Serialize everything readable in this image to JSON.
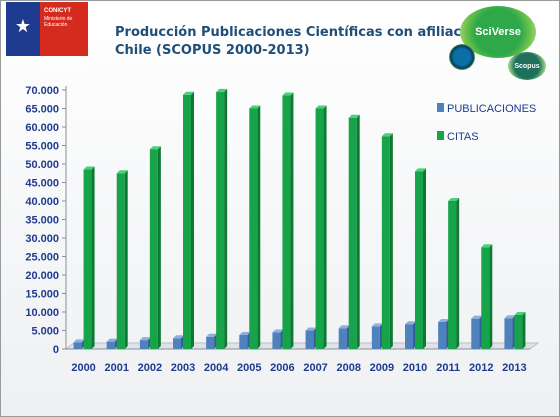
{
  "header": {
    "title_line1": "Producción Publicaciones Científicas con afiliación",
    "title_line2": "Chile (SCOPUS 2000-2013)"
  },
  "logo": {
    "org": "CONICYT",
    "sub1": "Ministerio de",
    "sub2": "Educación",
    "footer": "Gobierno de Chile"
  },
  "badges": {
    "sciverse": "SciVerse",
    "scopus": "Scopus"
  },
  "colors": {
    "publicaciones": "#4f81bd",
    "citas": "#16a34a",
    "axis_text": "#1f3b8f"
  },
  "chart_data": {
    "type": "bar",
    "title": "Producción Publicaciones Científicas con afiliación Chile (SCOPUS 2000-2013)",
    "categories": [
      "2000",
      "2001",
      "2002",
      "2003",
      "2004",
      "2005",
      "2006",
      "2007",
      "2008",
      "2009",
      "2010",
      "2011",
      "2012",
      "2013"
    ],
    "series": [
      {
        "name": "PUBLICACIONES",
        "values": [
          1800,
          2000,
          2400,
          2900,
          3300,
          3800,
          4500,
          5000,
          5600,
          6100,
          6700,
          7300,
          8200,
          8300
        ]
      },
      {
        "name": "CITAS",
        "values": [
          48500,
          47500,
          54000,
          68700,
          69500,
          65000,
          68500,
          65000,
          62500,
          57500,
          48000,
          40000,
          27500,
          9200
        ]
      }
    ],
    "ylim": [
      0,
      70000
    ],
    "y_ticks": [
      "0",
      "5.000",
      "10.000",
      "15.000",
      "20.000",
      "25.000",
      "30.000",
      "35.000",
      "40.000",
      "45.000",
      "50.000",
      "55.000",
      "60.000",
      "65.000",
      "70.000"
    ],
    "legend_position": "top-right",
    "grid": false
  }
}
